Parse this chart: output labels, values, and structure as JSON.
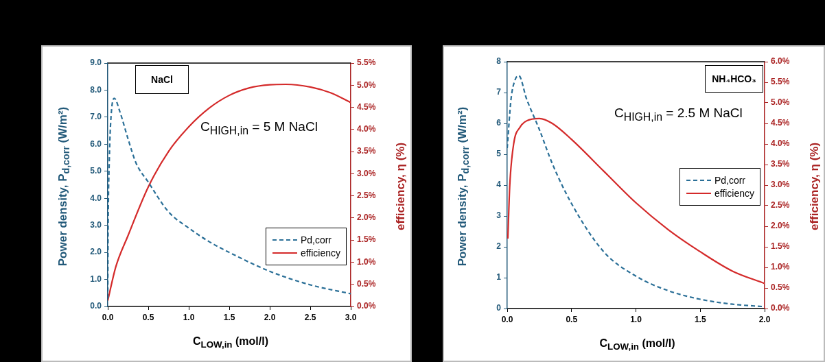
{
  "chart_data": [
    {
      "type": "line",
      "xlabel": "C$_{LOW,in}$ (mol/l)",
      "ylabel": "Power density, P$_{d,corr}$ (W/m²)",
      "y2label": "efficiency, η (%)",
      "annotations": [
        "NaCl",
        "C$_{HIGH,in}$ = 5 M NaCl"
      ],
      "xlim": [
        0,
        3
      ],
      "xticks": [
        {
          "value": 0,
          "label": "0.0"
        },
        0.5,
        {
          "value": 1,
          "label": "1.0"
        },
        1.5,
        {
          "value": 2,
          "label": "2.0"
        },
        2.5,
        {
          "value": 3,
          "label": "3.0"
        }
      ],
      "ylim": [
        0,
        9
      ],
      "yticks": [
        {
          "value": 0,
          "label": "0.0"
        },
        {
          "value": 1,
          "label": "1.0"
        },
        {
          "value": 2,
          "label": "2.0"
        },
        {
          "value": 3,
          "label": "3.0"
        },
        {
          "value": 4,
          "label": "4.0"
        },
        {
          "value": 5,
          "label": "5.0"
        },
        {
          "value": 6,
          "label": "6.0"
        },
        {
          "value": 7,
          "label": "7.0"
        },
        {
          "value": 8,
          "label": "8.0"
        },
        {
          "value": 9,
          "label": "9.0"
        }
      ],
      "y2lim": [
        0,
        5.5
      ],
      "y2ticks": [
        {
          "value": 0,
          "label": "0.0%"
        },
        {
          "value": 0.5,
          "label": "0.5%"
        },
        {
          "value": 1,
          "label": "1.0%"
        },
        {
          "value": 1.5,
          "label": "1.5%"
        },
        {
          "value": 2,
          "label": "2.0%"
        },
        {
          "value": 2.5,
          "label": "2.5%"
        },
        {
          "value": 3,
          "label": "3.0%"
        },
        {
          "value": 3.5,
          "label": "3.5%"
        },
        {
          "value": 4,
          "label": "4.0%"
        },
        {
          "value": 4.5,
          "label": "4.5%"
        },
        {
          "value": 5,
          "label": "5.0%"
        },
        {
          "value": 5.5,
          "label": "5.5%"
        }
      ],
      "grid": false,
      "legend": "bottom right",
      "marker": "none",
      "series": [
        {
          "name": "Pd,corr",
          "color": "#2a6f97",
          "line_style": "dashed",
          "x": [
            0,
            0.005,
            0.02,
            0.04,
            0.08,
            0.15,
            0.25,
            0.35,
            0.5,
            0.75,
            1,
            1.25,
            1.5,
            2,
            2.5,
            3
          ],
          "values": [
            0.3,
            3,
            5.5,
            7,
            7.7,
            7.2,
            6.2,
            5.3,
            4.6,
            3.5,
            2.9,
            2.4,
            2,
            1.3,
            0.8,
            0.47
          ]
        },
        {
          "name": "efficiency",
          "color": "#d42a2a",
          "line_style": "solid",
          "axis": "y2",
          "x": [
            0,
            0.1,
            0.25,
            0.5,
            0.75,
            1,
            1.25,
            1.5,
            1.75,
            2,
            2.2,
            2.5,
            2.75,
            3
          ],
          "values": [
            0.13,
            0.9,
            1.6,
            2.7,
            3.5,
            4.06,
            4.48,
            4.77,
            4.94,
            5.01,
            5.02,
            4.96,
            4.83,
            4.61
          ]
        }
      ]
    },
    {
      "type": "line",
      "xlabel": "C$_{LOW,in}$ (mol/l)",
      "ylabel": "Power density, P$_{d,corr}$ (W/m²)",
      "y2label": "efficiency, η (%)",
      "annotations": [
        "NH₄HCO₃",
        "C$_{HIGH,in}$ = 2.5 M NaCl"
      ],
      "xlim": [
        0,
        2
      ],
      "xticks": [
        {
          "value": 0,
          "label": "0.0"
        },
        0.5,
        {
          "value": 1,
          "label": "1.0"
        },
        1.5,
        {
          "value": 2,
          "label": "2.0"
        }
      ],
      "ylim": [
        0,
        8
      ],
      "yticks": [
        0,
        1,
        2,
        3,
        4,
        5,
        6,
        7,
        8
      ],
      "y2lim": [
        0,
        6
      ],
      "y2ticks": [
        {
          "value": 0,
          "label": "0.0%"
        },
        {
          "value": 0.5,
          "label": "0.5%"
        },
        {
          "value": 1,
          "label": "1.0%"
        },
        {
          "value": 1.5,
          "label": "1.5%"
        },
        {
          "value": 2,
          "label": "2.0%"
        },
        {
          "value": 2.5,
          "label": "2.5%"
        },
        {
          "value": 3,
          "label": "3.0%"
        },
        {
          "value": 3.5,
          "label": "3.5%"
        },
        {
          "value": 4,
          "label": "4.0%"
        },
        {
          "value": 4.5,
          "label": "4.5%"
        },
        {
          "value": 5,
          "label": "5.0%"
        },
        {
          "value": 5.5,
          "label": "5.5%"
        },
        {
          "value": 6,
          "label": "6.0%"
        }
      ],
      "grid": false,
      "legend": "right",
      "marker": "none",
      "series": [
        {
          "name": "Pd,corr",
          "color": "#2a6f97",
          "line_style": "dashed",
          "x": [
            0,
            0.03,
            0.06,
            0.09,
            0.15,
            0.25,
            0.35,
            0.5,
            0.75,
            1,
            1.25,
            1.5,
            1.75,
            2
          ],
          "values": [
            5.2,
            6.8,
            7.4,
            7.55,
            6.8,
            5.8,
            4.7,
            3.4,
            1.84,
            1.05,
            0.58,
            0.3,
            0.14,
            0.06
          ]
        },
        {
          "name": "efficiency",
          "color": "#d42a2a",
          "line_style": "solid",
          "axis": "y2",
          "x": [
            0.005,
            0.02,
            0.05,
            0.1,
            0.15,
            0.25,
            0.35,
            0.5,
            0.75,
            1,
            1.25,
            1.5,
            1.75,
            2
          ],
          "values": [
            1.7,
            3,
            4,
            4.41,
            4.56,
            4.62,
            4.5,
            4.11,
            3.34,
            2.57,
            1.92,
            1.38,
            0.91,
            0.61
          ]
        }
      ]
    }
  ]
}
